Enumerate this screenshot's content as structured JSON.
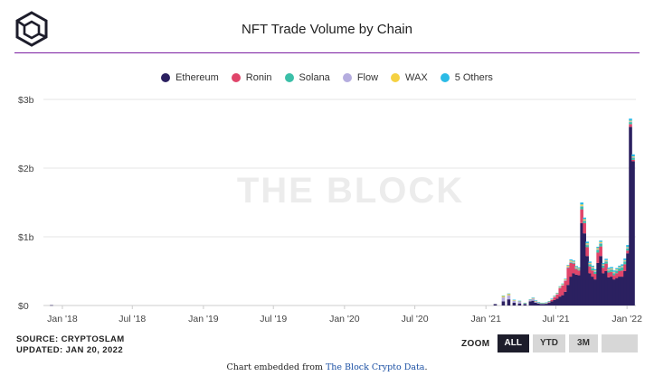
{
  "title": "NFT Trade Volume by Chain",
  "legend": [
    {
      "label": "Ethereum",
      "color": "#2b2060"
    },
    {
      "label": "Ronin",
      "color": "#e0456a"
    },
    {
      "label": "Solana",
      "color": "#3bbfa8"
    },
    {
      "label": "Flow",
      "color": "#b5addf"
    },
    {
      "label": "WAX",
      "color": "#f5d142"
    },
    {
      "label": "5 Others",
      "color": "#2bbbe6"
    }
  ],
  "watermark": "THE BLOCK",
  "source_text": "SOURCE: CRYPTOSLAM",
  "updated_text": "UPDATED: JAN 20, 2022",
  "zoom": {
    "label": "ZOOM",
    "buttons": [
      "ALL",
      "YTD",
      "3M",
      ""
    ],
    "active": "ALL"
  },
  "embed": {
    "prefix": "Chart embedded from ",
    "link": "The Block Crypto Data",
    "suffix": "."
  },
  "chart_data": {
    "type": "bar",
    "stacked": true,
    "title": "NFT Trade Volume by Chain",
    "xlabel": "",
    "ylabel": "",
    "y_unit": "USD",
    "ylim": [
      0,
      3000000000
    ],
    "yticks": [
      0,
      1000000000,
      2000000000,
      3000000000
    ],
    "ytick_labels": [
      "$0",
      "$1b",
      "$2b",
      "$3b"
    ],
    "xlim": [
      "2017-11-13",
      "2022-01-24"
    ],
    "xticks": [
      "2018-01-01",
      "2018-07-01",
      "2019-01-01",
      "2019-07-01",
      "2020-01-01",
      "2020-07-01",
      "2021-01-01",
      "2021-07-01",
      "2022-01-01"
    ],
    "xtick_labels": [
      "Jan '18",
      "Jul '18",
      "Jan '19",
      "Jul '19",
      "Jan '20",
      "Jul '20",
      "Jan '21",
      "Jul '21",
      "Jan '22"
    ],
    "grid": true,
    "legend_position": "top-center",
    "categories": [
      "2017-12-04",
      "2021-01-25",
      "2021-02-15",
      "2021-03-01",
      "2021-03-15",
      "2021-03-29",
      "2021-04-12",
      "2021-04-26",
      "2021-05-03",
      "2021-05-10",
      "2021-05-17",
      "2021-05-24",
      "2021-05-31",
      "2021-06-07",
      "2021-06-14",
      "2021-06-21",
      "2021-06-28",
      "2021-07-05",
      "2021-07-12",
      "2021-07-19",
      "2021-07-26",
      "2021-08-02",
      "2021-08-09",
      "2021-08-16",
      "2021-08-23",
      "2021-08-30",
      "2021-09-06",
      "2021-09-13",
      "2021-09-20",
      "2021-09-27",
      "2021-10-04",
      "2021-10-11",
      "2021-10-18",
      "2021-10-25",
      "2021-11-01",
      "2021-11-08",
      "2021-11-15",
      "2021-11-22",
      "2021-11-29",
      "2021-12-06",
      "2021-12-13",
      "2021-12-20",
      "2021-12-27",
      "2022-01-03",
      "2022-01-10",
      "2022-01-17"
    ],
    "series": [
      {
        "name": "Ethereum",
        "values": [
          5000000,
          20000000,
          60000000,
          90000000,
          40000000,
          30000000,
          20000000,
          60000000,
          70000000,
          40000000,
          30000000,
          20000000,
          20000000,
          25000000,
          40000000,
          60000000,
          80000000,
          100000000,
          130000000,
          150000000,
          200000000,
          300000000,
          420000000,
          470000000,
          450000000,
          440000000,
          1200000000,
          1050000000,
          720000000,
          470000000,
          420000000,
          380000000,
          620000000,
          720000000,
          470000000,
          500000000,
          410000000,
          420000000,
          380000000,
          400000000,
          420000000,
          420000000,
          500000000,
          760000000,
          2600000000,
          2100000000
        ]
      },
      {
        "name": "Ronin",
        "values": [
          0,
          0,
          0,
          0,
          0,
          0,
          0,
          0,
          0,
          0,
          0,
          0,
          0,
          0,
          5000000,
          20000000,
          40000000,
          60000000,
          120000000,
          140000000,
          160000000,
          250000000,
          200000000,
          140000000,
          80000000,
          70000000,
          200000000,
          150000000,
          130000000,
          100000000,
          90000000,
          80000000,
          150000000,
          140000000,
          80000000,
          110000000,
          70000000,
          70000000,
          60000000,
          70000000,
          80000000,
          90000000,
          100000000,
          40000000,
          40000000,
          20000000
        ]
      },
      {
        "name": "Solana",
        "values": [
          0,
          0,
          0,
          0,
          0,
          0,
          0,
          0,
          0,
          0,
          0,
          0,
          0,
          0,
          0,
          0,
          0,
          0,
          0,
          0,
          0,
          5000000,
          10000000,
          10000000,
          10000000,
          10000000,
          40000000,
          30000000,
          30000000,
          30000000,
          30000000,
          30000000,
          40000000,
          40000000,
          30000000,
          30000000,
          30000000,
          30000000,
          30000000,
          35000000,
          40000000,
          45000000,
          40000000,
          30000000,
          30000000,
          30000000
        ]
      },
      {
        "name": "Flow",
        "values": [
          0,
          0,
          60000000,
          60000000,
          30000000,
          30000000,
          10000000,
          20000000,
          30000000,
          20000000,
          10000000,
          10000000,
          10000000,
          10000000,
          10000000,
          10000000,
          10000000,
          10000000,
          10000000,
          10000000,
          10000000,
          10000000,
          10000000,
          10000000,
          10000000,
          10000000,
          10000000,
          10000000,
          10000000,
          10000000,
          10000000,
          10000000,
          10000000,
          10000000,
          10000000,
          10000000,
          10000000,
          10000000,
          10000000,
          10000000,
          10000000,
          10000000,
          10000000,
          10000000,
          10000000,
          10000000
        ]
      },
      {
        "name": "WAX",
        "values": [
          0,
          0,
          20000000,
          20000000,
          10000000,
          5000000,
          5000000,
          5000000,
          10000000,
          10000000,
          5000000,
          5000000,
          5000000,
          5000000,
          5000000,
          5000000,
          10000000,
          10000000,
          10000000,
          10000000,
          10000000,
          15000000,
          15000000,
          10000000,
          10000000,
          10000000,
          20000000,
          15000000,
          15000000,
          10000000,
          10000000,
          10000000,
          15000000,
          15000000,
          10000000,
          10000000,
          10000000,
          10000000,
          10000000,
          10000000,
          10000000,
          10000000,
          10000000,
          10000000,
          10000000,
          10000000
        ]
      },
      {
        "name": "5 Others",
        "values": [
          0,
          0,
          5000000,
          5000000,
          5000000,
          5000000,
          5000000,
          5000000,
          5000000,
          5000000,
          5000000,
          5000000,
          5000000,
          5000000,
          5000000,
          5000000,
          5000000,
          5000000,
          10000000,
          10000000,
          10000000,
          10000000,
          15000000,
          15000000,
          15000000,
          15000000,
          30000000,
          25000000,
          25000000,
          20000000,
          20000000,
          20000000,
          20000000,
          20000000,
          20000000,
          20000000,
          20000000,
          20000000,
          20000000,
          20000000,
          20000000,
          25000000,
          25000000,
          30000000,
          30000000,
          30000000
        ]
      }
    ]
  }
}
